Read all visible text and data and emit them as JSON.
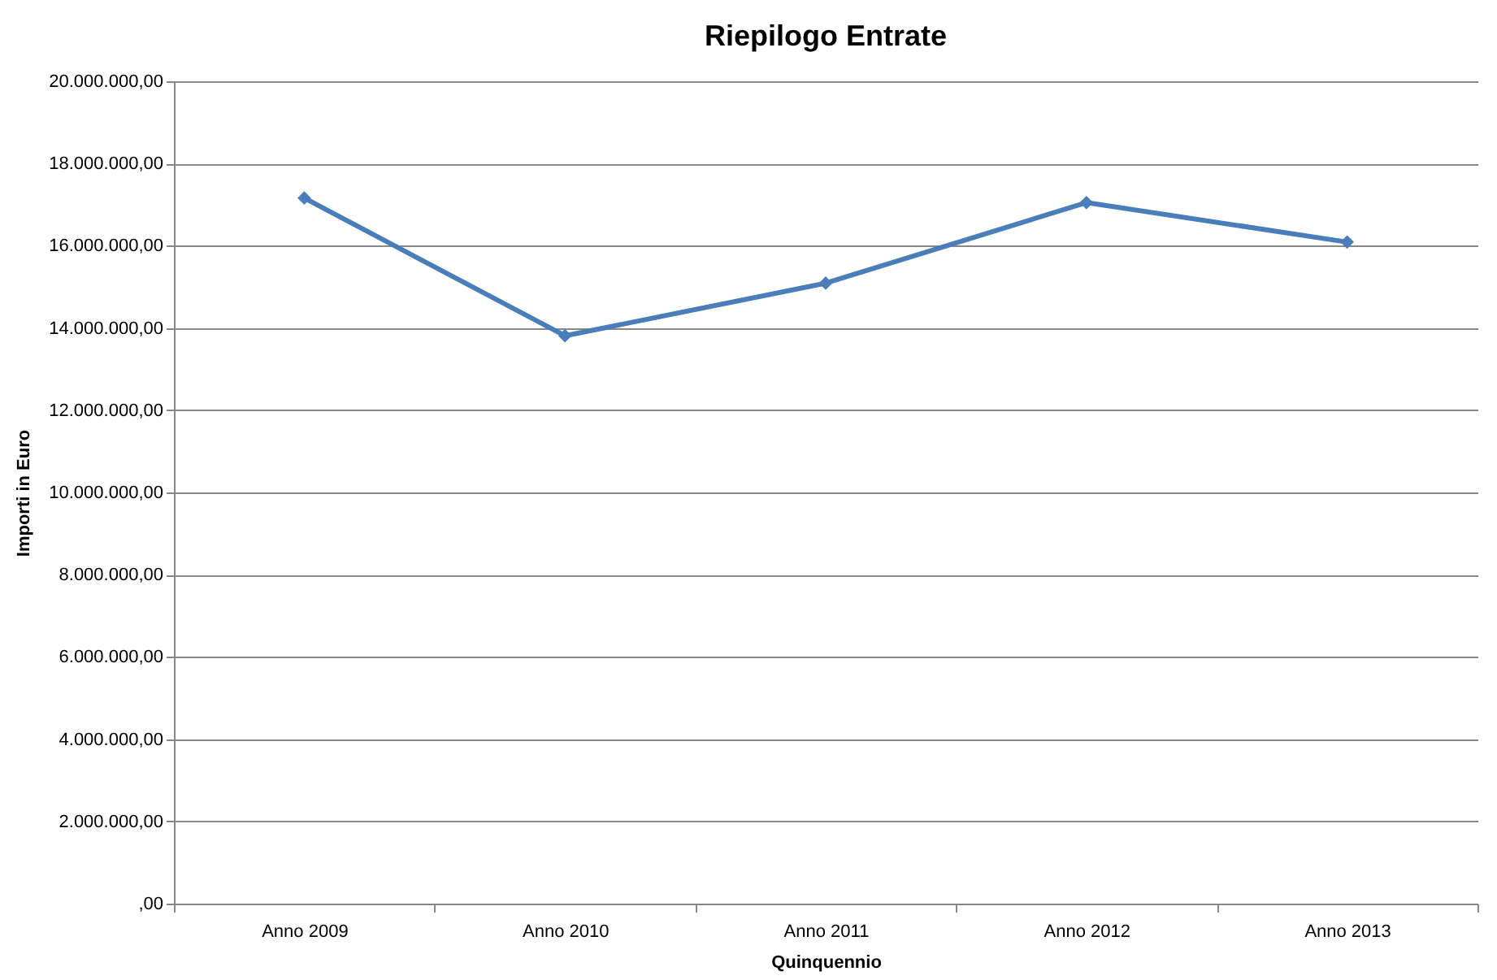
{
  "chart_data": {
    "type": "line",
    "title": "Riepilogo Entrate",
    "xlabel": "Quinquennio",
    "ylabel": "Importi in Euro",
    "categories": [
      "Anno 2009",
      "Anno 2010",
      "Anno 2011",
      "Anno 2012",
      "Anno 2013"
    ],
    "series": [
      {
        "color": "#4a7ebb",
        "values": [
          17160000,
          13810000,
          15090000,
          17050000,
          16090000
        ]
      }
    ],
    "ylim": [
      0,
      20000000
    ],
    "yticks": [
      {
        "value": 0,
        "label": ",00"
      },
      {
        "value": 2000000,
        "label": "2.000.000,00"
      },
      {
        "value": 4000000,
        "label": "4.000.000,00"
      },
      {
        "value": 6000000,
        "label": "6.000.000,00"
      },
      {
        "value": 8000000,
        "label": "8.000.000,00"
      },
      {
        "value": 10000000,
        "label": "10.000.000,00"
      },
      {
        "value": 12000000,
        "label": "12.000.000,00"
      },
      {
        "value": 14000000,
        "label": "14.000.000,00"
      },
      {
        "value": 16000000,
        "label": "16.000.000,00"
      },
      {
        "value": 18000000,
        "label": "18.000.000,00"
      },
      {
        "value": 20000000,
        "label": "20.000.000,00"
      }
    ],
    "grid": "y",
    "marker": "diamond",
    "line_style": "solid",
    "legend": false
  }
}
